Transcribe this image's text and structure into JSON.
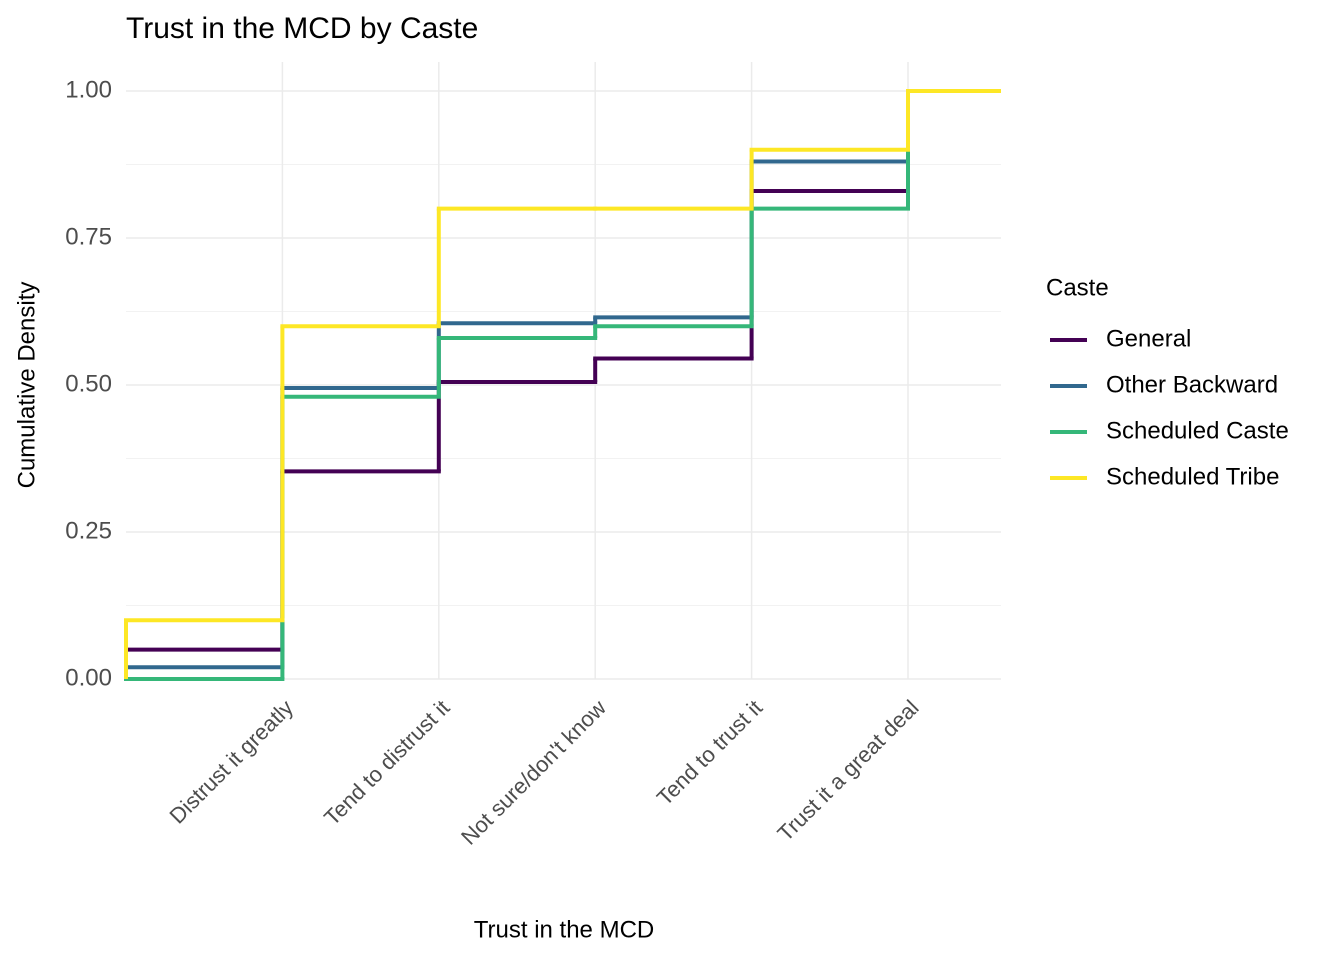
{
  "chart_data": {
    "type": "step",
    "title": "Trust in the MCD by Caste",
    "x_label": "Trust in the MCD",
    "y_label": "Cumulative Density",
    "legend_title": "Caste",
    "legend_position": "right",
    "categories": [
      null,
      "Distrust it greatly",
      "Tend to distrust it",
      "Not sure/don't know",
      "Tend to trust it",
      "Trust it a great deal"
    ],
    "series": [
      {
        "name": "General",
        "color": "#440154",
        "values": [
          0.05,
          0.353,
          0.505,
          0.545,
          0.83,
          1.0
        ]
      },
      {
        "name": "Other Backward",
        "color": "#31688e",
        "values": [
          0.02,
          0.495,
          0.605,
          0.615,
          0.88,
          1.0
        ]
      },
      {
        "name": "Scheduled Caste",
        "color": "#35b779",
        "values": [
          0.0,
          0.48,
          0.58,
          0.6,
          0.8,
          1.0
        ]
      },
      {
        "name": "Scheduled Tribe",
        "color": "#fde725",
        "values": [
          0.1,
          0.6,
          0.8,
          0.8,
          0.9,
          1.0
        ]
      }
    ],
    "ylim": [
      0,
      1
    ],
    "yticks": [
      {
        "value": 0,
        "label": "0.00"
      },
      {
        "value": 0.25,
        "label": "0.25"
      },
      {
        "value": 0.5,
        "label": "0.50"
      },
      {
        "value": 0.75,
        "label": "0.75"
      },
      {
        "value": 1,
        "label": "1.00"
      }
    ],
    "y_minor_ticks": [
      0.125,
      0.375,
      0.625,
      0.875
    ],
    "grid": true
  }
}
